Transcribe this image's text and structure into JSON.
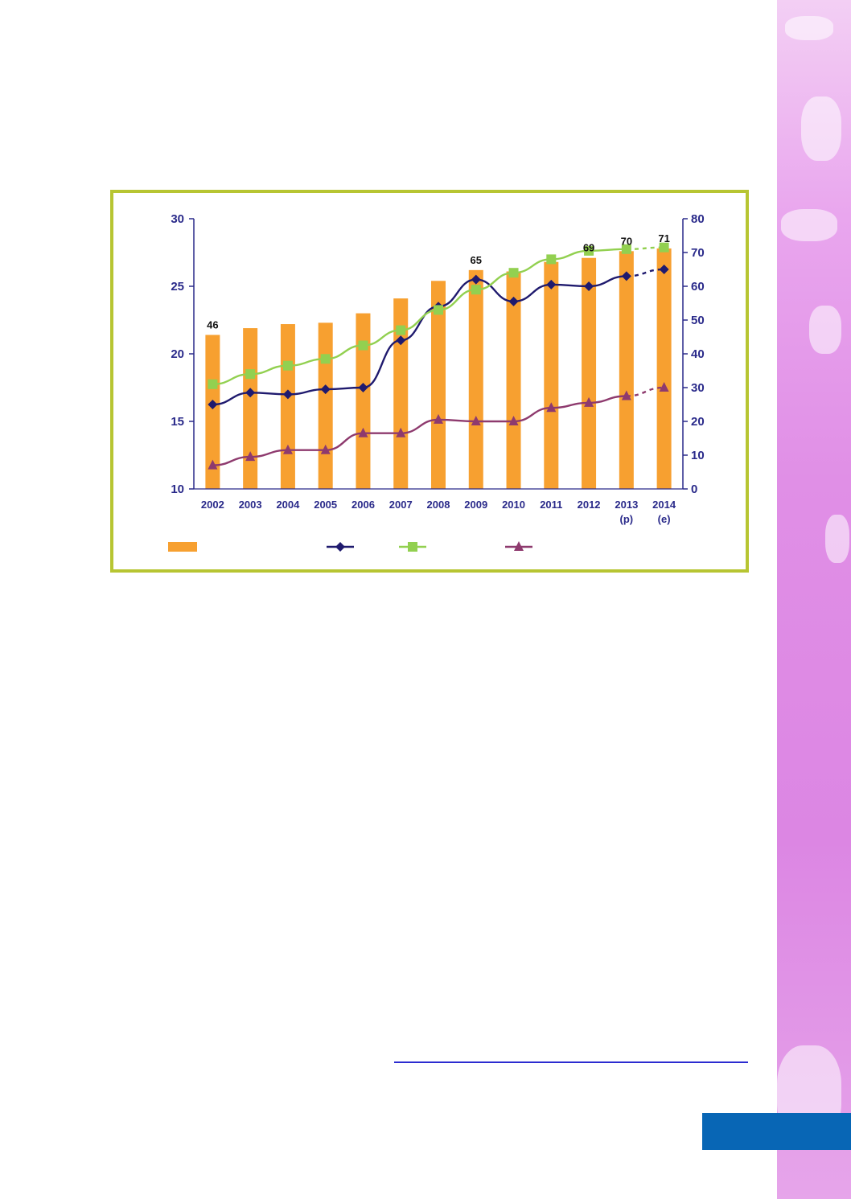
{
  "colors": {
    "bar": "#f7a030",
    "series_navy": "#1f1a6e",
    "series_green": "#92d050",
    "series_purple": "#8e3a6e",
    "axis": "#2a2a8a",
    "frame": "#b7c532",
    "side_panel": "#dc86e3",
    "page_tab": "#0866b5"
  },
  "chart_data": {
    "type": "bar",
    "categories": [
      "2002",
      "2003",
      "2004",
      "2005",
      "2006",
      "2007",
      "2008",
      "2009",
      "2010",
      "2011",
      "2012",
      "2013",
      "2014"
    ],
    "category_sublabels": [
      "",
      "",
      "",
      "",
      "",
      "",
      "",
      "",
      "",
      "",
      "",
      "(p)",
      "(e)"
    ],
    "left_axis": {
      "ylim": [
        10,
        30
      ],
      "ticks": [
        "10",
        "15",
        "20",
        "25",
        "30"
      ]
    },
    "right_axis": {
      "ylim": [
        0,
        80
      ],
      "ticks": [
        "0",
        "10",
        "20",
        "30",
        "40",
        "50",
        "60",
        "70",
        "80"
      ]
    },
    "bars": {
      "axis": "left",
      "values": [
        21.4,
        21.9,
        22.2,
        22.3,
        23.0,
        24.1,
        25.4,
        26.2,
        26.1,
        26.8,
        27.1,
        27.6,
        27.8
      ],
      "data_labels": [
        {
          "index": 0,
          "text": "46"
        },
        {
          "index": 7,
          "text": "65"
        },
        {
          "index": 10,
          "text": "69"
        },
        {
          "index": 11,
          "text": "70"
        },
        {
          "index": 12,
          "text": "71"
        }
      ]
    },
    "series": [
      {
        "marker": "diamond",
        "axis": "right",
        "values": [
          25,
          28.5,
          28,
          29.5,
          30,
          44,
          54,
          62,
          55.5,
          60.5,
          60,
          63,
          65
        ],
        "dashed_from_index": 11
      },
      {
        "marker": "square",
        "axis": "right",
        "values": [
          31,
          34,
          36.5,
          38.5,
          42.5,
          47,
          53,
          59,
          64,
          68,
          70.5,
          71,
          71.5
        ],
        "dashed_from_index": 11
      },
      {
        "marker": "triangle",
        "axis": "right",
        "values": [
          7,
          9.5,
          11.5,
          11.5,
          16.5,
          16.5,
          20.5,
          20,
          20,
          24,
          25.5,
          27.5,
          30
        ],
        "dashed_from_index": 11
      }
    ],
    "legend_placement": "bottom"
  }
}
